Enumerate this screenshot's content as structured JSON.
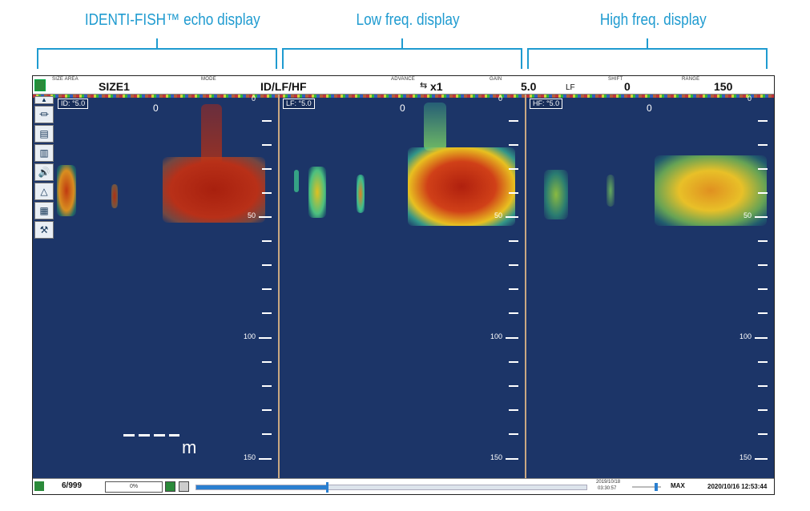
{
  "captions": {
    "identi": "IDENTI-FISH™ echo display",
    "low": "Low freq. display",
    "high": "High freq. display"
  },
  "topbar": {
    "size_area_label": "SIZE AREA",
    "size_area_value": "SIZE1",
    "mode_label": "MODE",
    "mode_value": "ID/LF/HF",
    "advance_label": "ADVANCE",
    "advance_value": "x1",
    "gain_label": "GAIN",
    "gain_value": "5.0",
    "gain_unit": "LF",
    "shift_label": "SHIFT",
    "shift_value": "0",
    "range_label": "RANGE",
    "range_value": "150"
  },
  "panels": [
    {
      "badge": "ID: °5.0",
      "zero": "0"
    },
    {
      "badge": "LF: °5.0",
      "zero": "0"
    },
    {
      "badge": "HF: °5.0",
      "zero": "0"
    }
  ],
  "scale_labels": {
    "d0": "0",
    "d50": "50",
    "d100": "100",
    "d150": "150"
  },
  "size_marker": {
    "unit": "m"
  },
  "sidebar_icons": [
    "scroll-up-icon",
    "transducer-icon",
    "screen-mode-icon",
    "histogram-icon",
    "volume-icon",
    "gain-icon",
    "save-icon",
    "settings-icon"
  ],
  "bottombar": {
    "counter": "6/999",
    "progress_text": "0%",
    "playback_date": "2019/10/18",
    "playback_time": "03:30:57",
    "max_label": "MAX",
    "datetime": "2020/10/16 12:53:44"
  },
  "colors": {
    "caption": "#1f9bd0",
    "background": "#1c3568",
    "echo_strong": "#b02a12",
    "echo_mid": "#e0a020",
    "echo_weak": "#2aa070"
  }
}
